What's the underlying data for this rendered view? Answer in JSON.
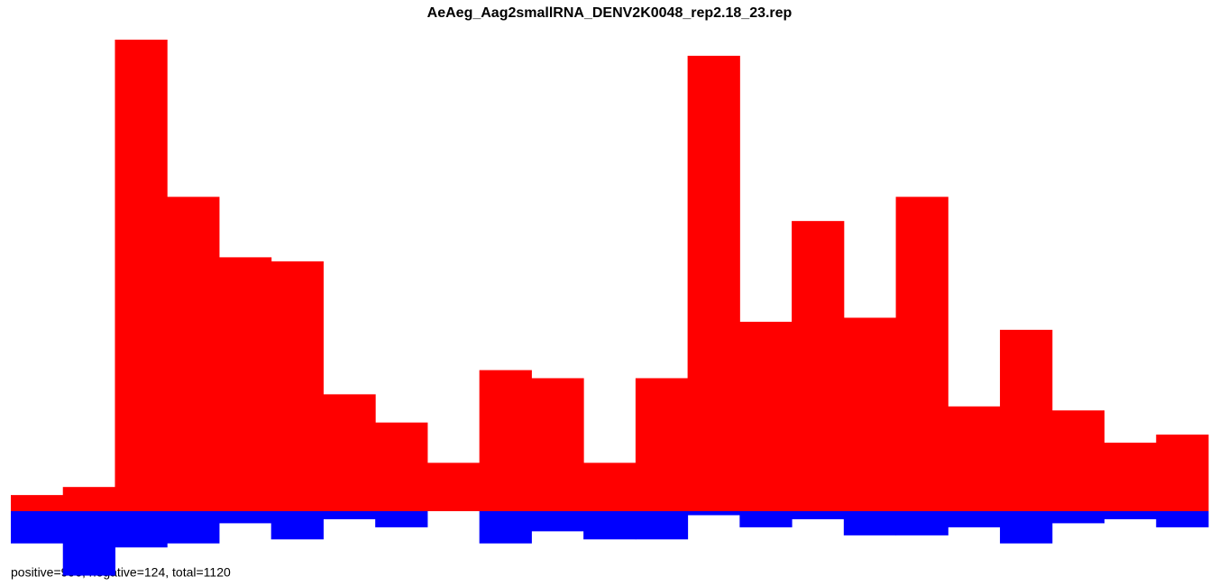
{
  "chart_data": {
    "type": "bar",
    "title": "AeAeg_Aag2smallRNA_DENV2K0048_rep2.18_23.rep",
    "footer": "positive=996, negative=124, total=1120",
    "series": [
      {
        "color": "#ff0000",
        "values": [
          4,
          6,
          117,
          78,
          63,
          62,
          29,
          22,
          12,
          35,
          33,
          12,
          33,
          113,
          47,
          72,
          48,
          78,
          26,
          45,
          25,
          17,
          19
        ]
      },
      {
        "color": "#0000ff",
        "values": [
          -8,
          -16,
          -9,
          -8,
          -3,
          -7,
          -2,
          -4,
          0,
          -8,
          -5,
          -7,
          -7,
          -1,
          -4,
          -2,
          -6,
          -6,
          -4,
          -8,
          -3,
          -2,
          -4
        ]
      }
    ]
  }
}
